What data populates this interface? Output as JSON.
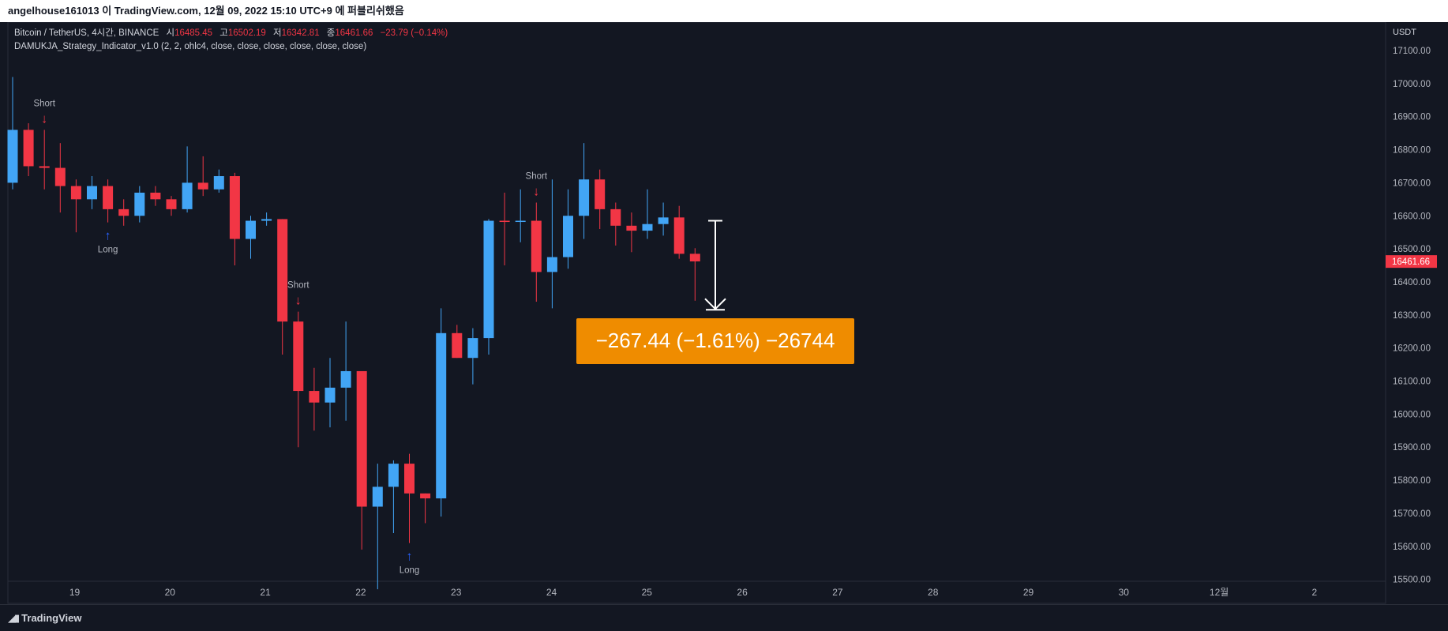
{
  "header": {
    "publish_line": "angelhouse161013 이 TradingView.com, 12월 09, 2022 15:10 UTC+9 에 퍼블리쉬했음"
  },
  "legend": {
    "symbol": "Bitcoin / TetherUS, 4시간, BINANCE",
    "open_label": "시",
    "open_value": "16485.45",
    "high_label": "고",
    "high_value": "16502.19",
    "low_label": "저",
    "low_value": "16342.81",
    "close_label": "종",
    "close_value": "16461.66",
    "change_value": "−23.79 (−0.14%)",
    "indicator": "DAMUKJA_Strategy_Indicator_v1.0 (2, 2, ohlc4, close, close, close, close, close, close)"
  },
  "footer": {
    "brand": "TradingView"
  },
  "colors": {
    "up": "#42a5f5",
    "down": "#f23645",
    "background": "#131722",
    "grid": "#2a2e39",
    "measure_box": "#ef8c00"
  },
  "chart_data": {
    "type": "candlestick",
    "y_axis_unit": "USDT",
    "ylim": [
      15450,
      17150
    ],
    "y_ticks": [
      "17100.00",
      "17000.00",
      "16900.00",
      "16800.00",
      "16700.00",
      "16600.00",
      "16500.00",
      "16400.00",
      "16300.00",
      "16200.00",
      "16100.00",
      "16000.00",
      "15900.00",
      "15800.00",
      "15700.00",
      "15600.00",
      "15500.00"
    ],
    "x_ticks": [
      "19",
      "20",
      "21",
      "22",
      "23",
      "24",
      "25",
      "26",
      "27",
      "28",
      "29",
      "30",
      "12월",
      "2"
    ],
    "current_price": "16461.66",
    "candles": [
      {
        "o": 16700,
        "h": 17020,
        "l": 16680,
        "c": 16860
      },
      {
        "o": 16860,
        "h": 16880,
        "l": 16720,
        "c": 16750
      },
      {
        "o": 16750,
        "h": 16860,
        "l": 16680,
        "c": 16745
      },
      {
        "o": 16745,
        "h": 16820,
        "l": 16610,
        "c": 16690
      },
      {
        "o": 16690,
        "h": 16710,
        "l": 16550,
        "c": 16650
      },
      {
        "o": 16650,
        "h": 16720,
        "l": 16620,
        "c": 16690
      },
      {
        "o": 16690,
        "h": 16710,
        "l": 16580,
        "c": 16620
      },
      {
        "o": 16620,
        "h": 16650,
        "l": 16570,
        "c": 16600
      },
      {
        "o": 16600,
        "h": 16690,
        "l": 16580,
        "c": 16670
      },
      {
        "o": 16670,
        "h": 16690,
        "l": 16630,
        "c": 16650
      },
      {
        "o": 16650,
        "h": 16660,
        "l": 16600,
        "c": 16620
      },
      {
        "o": 16620,
        "h": 16810,
        "l": 16610,
        "c": 16700
      },
      {
        "o": 16700,
        "h": 16780,
        "l": 16660,
        "c": 16680
      },
      {
        "o": 16680,
        "h": 16740,
        "l": 16670,
        "c": 16720
      },
      {
        "o": 16720,
        "h": 16730,
        "l": 16450,
        "c": 16530
      },
      {
        "o": 16530,
        "h": 16600,
        "l": 16470,
        "c": 16585
      },
      {
        "o": 16585,
        "h": 16610,
        "l": 16570,
        "c": 16590
      },
      {
        "o": 16590,
        "h": 16590,
        "l": 16180,
        "c": 16280
      },
      {
        "o": 16280,
        "h": 16310,
        "l": 15900,
        "c": 16070
      },
      {
        "o": 16070,
        "h": 16140,
        "l": 15950,
        "c": 16035
      },
      {
        "o": 16035,
        "h": 16170,
        "l": 15960,
        "c": 16080
      },
      {
        "o": 16080,
        "h": 16280,
        "l": 15980,
        "c": 16130
      },
      {
        "o": 16130,
        "h": 16130,
        "l": 15590,
        "c": 15720
      },
      {
        "o": 15720,
        "h": 15850,
        "l": 15470,
        "c": 15780
      },
      {
        "o": 15780,
        "h": 15860,
        "l": 15640,
        "c": 15850
      },
      {
        "o": 15850,
        "h": 15880,
        "l": 15610,
        "c": 15760
      },
      {
        "o": 15760,
        "h": 15760,
        "l": 15670,
        "c": 15745
      },
      {
        "o": 15745,
        "h": 16320,
        "l": 15690,
        "c": 16245
      },
      {
        "o": 16245,
        "h": 16270,
        "l": 16170,
        "c": 16170
      },
      {
        "o": 16170,
        "h": 16260,
        "l": 16090,
        "c": 16230
      },
      {
        "o": 16230,
        "h": 16590,
        "l": 16180,
        "c": 16585
      },
      {
        "o": 16585,
        "h": 16670,
        "l": 16450,
        "c": 16582
      },
      {
        "o": 16582,
        "h": 16680,
        "l": 16520,
        "c": 16585
      },
      {
        "o": 16585,
        "h": 16640,
        "l": 16340,
        "c": 16430
      },
      {
        "o": 16430,
        "h": 16710,
        "l": 16320,
        "c": 16475
      },
      {
        "o": 16475,
        "h": 16680,
        "l": 16440,
        "c": 16600
      },
      {
        "o": 16600,
        "h": 16820,
        "l": 16530,
        "c": 16710
      },
      {
        "o": 16710,
        "h": 16740,
        "l": 16560,
        "c": 16620
      },
      {
        "o": 16620,
        "h": 16640,
        "l": 16510,
        "c": 16570
      },
      {
        "o": 16570,
        "h": 16610,
        "l": 16490,
        "c": 16555
      },
      {
        "o": 16555,
        "h": 16680,
        "l": 16530,
        "c": 16575
      },
      {
        "o": 16575,
        "h": 16640,
        "l": 16540,
        "c": 16595
      },
      {
        "o": 16595,
        "h": 16630,
        "l": 16470,
        "c": 16485
      },
      {
        "o": 16485,
        "h": 16502,
        "l": 16343,
        "c": 16462
      }
    ],
    "signals": [
      {
        "type": "Short",
        "bar": 2,
        "label": "Short"
      },
      {
        "type": "Long",
        "bar": 6,
        "label": "Long"
      },
      {
        "type": "Short",
        "bar": 18,
        "label": "Short"
      },
      {
        "type": "Long",
        "bar": 25,
        "label": "Long"
      },
      {
        "type": "Short",
        "bar": 33,
        "label": "Short"
      }
    ],
    "measure": {
      "from_price": 16585,
      "to_price": 16318,
      "label": "−267.44 (−1.61%) −26744"
    }
  }
}
